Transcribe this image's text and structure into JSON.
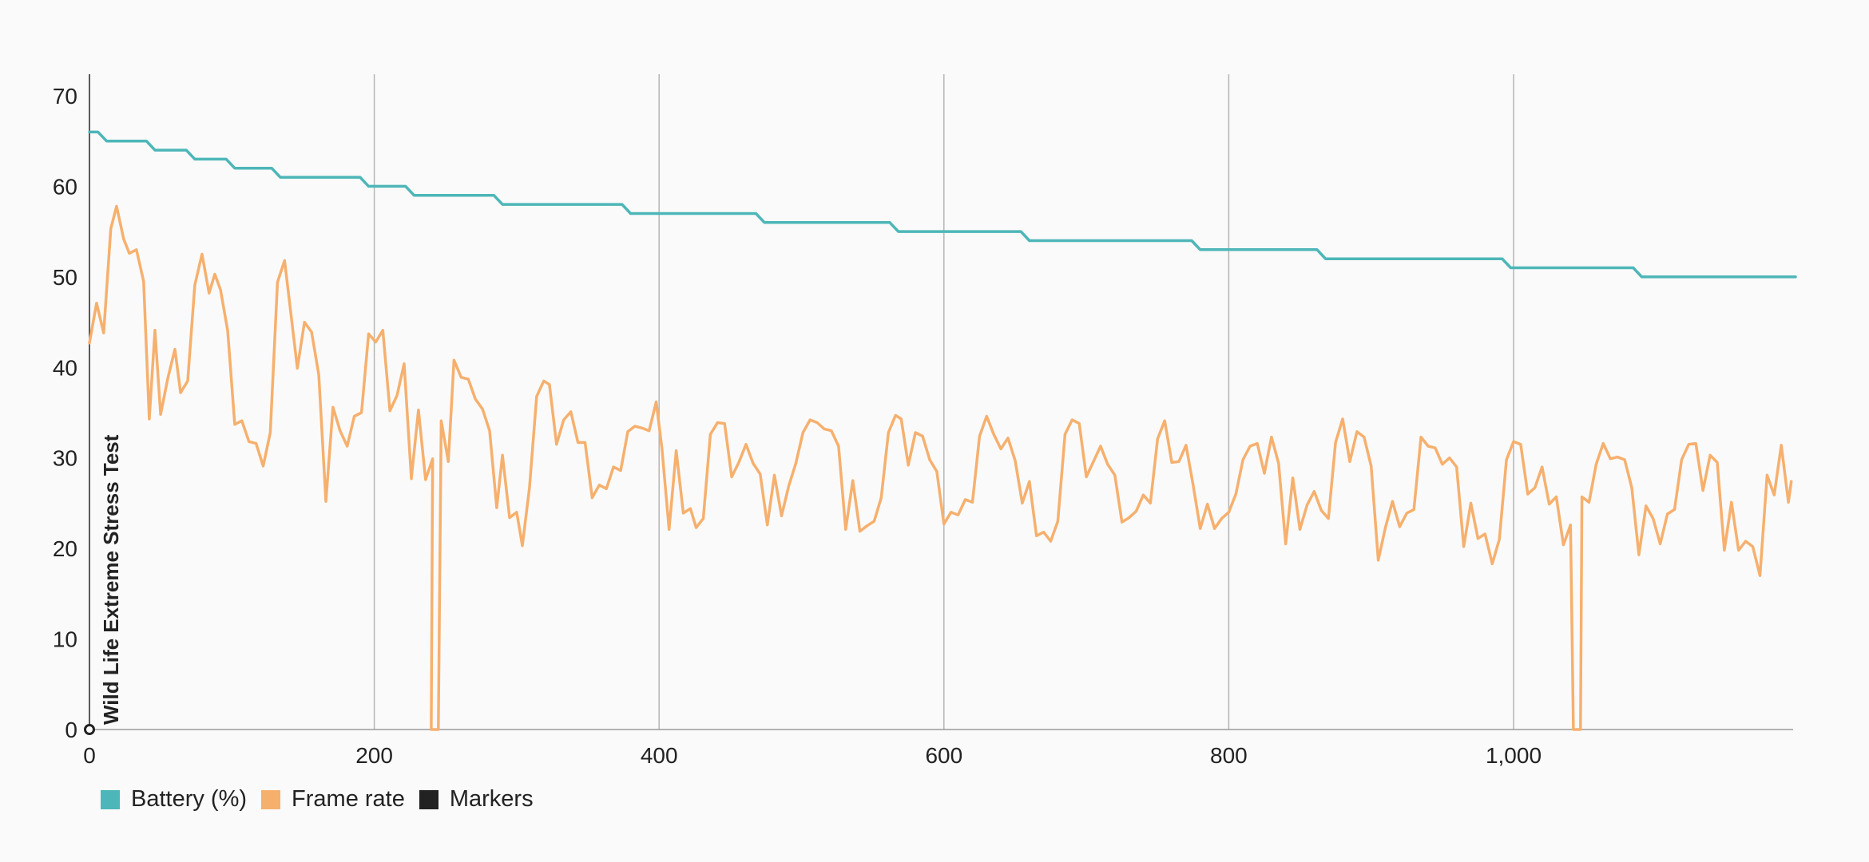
{
  "chart_data": {
    "type": "line",
    "x_ticks": [
      "0",
      "200",
      "400",
      "600",
      "800",
      "1,000"
    ],
    "y_ticks": [
      "0",
      "10",
      "20",
      "30",
      "40",
      "50",
      "60",
      "70"
    ],
    "xlim": [
      0,
      1200
    ],
    "ylim": [
      0,
      70
    ],
    "grid": "vertical",
    "legend_position": "bottom-left",
    "series": [
      {
        "name": "Battery (%)",
        "color": "#4db6b8",
        "points": [
          [
            0,
            66
          ],
          [
            6,
            66
          ],
          [
            12,
            65
          ],
          [
            40,
            65
          ],
          [
            46,
            64
          ],
          [
            68,
            64
          ],
          [
            74,
            63
          ],
          [
            96,
            63
          ],
          [
            102,
            62
          ],
          [
            128,
            62
          ],
          [
            134,
            61
          ],
          [
            190,
            61
          ],
          [
            196,
            60
          ],
          [
            222,
            60
          ],
          [
            228,
            59
          ],
          [
            284,
            59
          ],
          [
            290,
            58
          ],
          [
            374,
            58
          ],
          [
            380,
            57
          ],
          [
            468,
            57
          ],
          [
            474,
            56
          ],
          [
            562,
            56
          ],
          [
            568,
            55
          ],
          [
            654,
            55
          ],
          [
            660,
            54
          ],
          [
            774,
            54
          ],
          [
            780,
            53
          ],
          [
            862,
            53
          ],
          [
            868,
            52
          ],
          [
            992,
            52
          ],
          [
            998,
            51
          ],
          [
            1084,
            51
          ],
          [
            1090,
            50
          ],
          [
            1198,
            50
          ]
        ]
      },
      {
        "name": "Frame rate",
        "color": "#f6b06e",
        "points": [
          [
            0,
            42.7
          ],
          [
            5,
            47.1
          ],
          [
            10,
            43.8
          ],
          [
            15,
            55.3
          ],
          [
            19,
            57.8
          ],
          [
            24,
            54.2
          ],
          [
            28,
            52.6
          ],
          [
            33,
            53
          ],
          [
            38,
            49.5
          ],
          [
            42,
            34.3
          ],
          [
            46,
            44.1
          ],
          [
            50,
            34.8
          ],
          [
            55,
            38.8
          ],
          [
            60,
            42
          ],
          [
            64,
            37.2
          ],
          [
            69,
            38.5
          ],
          [
            74,
            49.1
          ],
          [
            79,
            52.5
          ],
          [
            84,
            48.2
          ],
          [
            88,
            50.3
          ],
          [
            92,
            48.6
          ],
          [
            97,
            44.1
          ],
          [
            102,
            33.7
          ],
          [
            107,
            34.1
          ],
          [
            112,
            31.8
          ],
          [
            117,
            31.6
          ],
          [
            122,
            29.1
          ],
          [
            127,
            32.8
          ],
          [
            132,
            49.4
          ],
          [
            137,
            51.8
          ],
          [
            142,
            45.2
          ],
          [
            146,
            39.9
          ],
          [
            151,
            45
          ],
          [
            156,
            43.9
          ],
          [
            161,
            39.2
          ],
          [
            166,
            25.2
          ],
          [
            171,
            35.6
          ],
          [
            176,
            33
          ],
          [
            181,
            31.3
          ],
          [
            186,
            34.6
          ],
          [
            191,
            35
          ],
          [
            196,
            43.7
          ],
          [
            201,
            42.8
          ],
          [
            206,
            44.1
          ],
          [
            211,
            35.2
          ],
          [
            216,
            36.9
          ],
          [
            221,
            40.4
          ],
          [
            226,
            27.7
          ],
          [
            231,
            35.3
          ],
          [
            236,
            27.6
          ],
          [
            241,
            29.9
          ],
          [
            240,
            0
          ],
          [
            245,
            0
          ],
          [
            247,
            34.1
          ],
          [
            252,
            29.6
          ],
          [
            256,
            40.8
          ],
          [
            261,
            38.9
          ],
          [
            266,
            38.7
          ],
          [
            271,
            36.5
          ],
          [
            276,
            35.4
          ],
          [
            281,
            33
          ],
          [
            286,
            24.5
          ],
          [
            290,
            30.3
          ],
          [
            295,
            23.4
          ],
          [
            300,
            24
          ],
          [
            304,
            20.3
          ],
          [
            309,
            26.7
          ],
          [
            314,
            36.8
          ],
          [
            319,
            38.5
          ],
          [
            323,
            38.1
          ],
          [
            328,
            31.5
          ],
          [
            333,
            34.2
          ],
          [
            338,
            35.1
          ],
          [
            343,
            31.7
          ],
          [
            348,
            31.7
          ],
          [
            353,
            25.6
          ],
          [
            358,
            27
          ],
          [
            363,
            26.6
          ],
          [
            368,
            29
          ],
          [
            373,
            28.6
          ],
          [
            378,
            32.9
          ],
          [
            383,
            33.5
          ],
          [
            388,
            33.3
          ],
          [
            393,
            33
          ],
          [
            398,
            36.2
          ],
          [
            402,
            31
          ],
          [
            407,
            22.1
          ],
          [
            412,
            30.8
          ],
          [
            417,
            23.9
          ],
          [
            422,
            24.4
          ],
          [
            426,
            22.3
          ],
          [
            431,
            23.3
          ],
          [
            436,
            32.6
          ],
          [
            441,
            33.9
          ],
          [
            446,
            33.8
          ],
          [
            451,
            27.9
          ],
          [
            456,
            29.5
          ],
          [
            461,
            31.5
          ],
          [
            466,
            29.4
          ],
          [
            471,
            28.2
          ],
          [
            476,
            22.6
          ],
          [
            481,
            28.1
          ],
          [
            486,
            23.6
          ],
          [
            491,
            26.9
          ],
          [
            496,
            29.4
          ],
          [
            501,
            32.8
          ],
          [
            506,
            34.2
          ],
          [
            511,
            33.9
          ],
          [
            516,
            33.2
          ],
          [
            521,
            33
          ],
          [
            526,
            31.3
          ],
          [
            531,
            22.1
          ],
          [
            536,
            27.5
          ],
          [
            541,
            21.9
          ],
          [
            546,
            22.5
          ],
          [
            551,
            23
          ],
          [
            556,
            25.6
          ],
          [
            561,
            32.8
          ],
          [
            566,
            34.7
          ],
          [
            570,
            34.3
          ],
          [
            575,
            29.2
          ],
          [
            580,
            32.8
          ],
          [
            585,
            32.4
          ],
          [
            590,
            29.8
          ],
          [
            595,
            28.5
          ],
          [
            600,
            22.7
          ],
          [
            605,
            24
          ],
          [
            610,
            23.7
          ],
          [
            615,
            25.4
          ],
          [
            620,
            25.1
          ],
          [
            625,
            32.4
          ],
          [
            630,
            34.6
          ],
          [
            635,
            32.6
          ],
          [
            640,
            31
          ],
          [
            645,
            32.2
          ],
          [
            650,
            29.7
          ],
          [
            655,
            25
          ],
          [
            660,
            27.4
          ],
          [
            665,
            21.4
          ],
          [
            670,
            21.8
          ],
          [
            675,
            20.8
          ],
          [
            680,
            23
          ],
          [
            685,
            32.6
          ],
          [
            690,
            34.2
          ],
          [
            695,
            33.8
          ],
          [
            700,
            27.9
          ],
          [
            705,
            29.6
          ],
          [
            710,
            31.3
          ],
          [
            715,
            29.3
          ],
          [
            720,
            28.1
          ],
          [
            725,
            22.9
          ],
          [
            730,
            23.4
          ],
          [
            735,
            24.1
          ],
          [
            740,
            25.9
          ],
          [
            745,
            25
          ],
          [
            750,
            32.1
          ],
          [
            755,
            34.1
          ],
          [
            760,
            29.5
          ],
          [
            765,
            29.6
          ],
          [
            770,
            31.4
          ],
          [
            775,
            27
          ],
          [
            780,
            22.2
          ],
          [
            785,
            24.9
          ],
          [
            790,
            22.2
          ],
          [
            795,
            23.3
          ],
          [
            800,
            24
          ],
          [
            805,
            26
          ],
          [
            810,
            29.8
          ],
          [
            815,
            31.3
          ],
          [
            820,
            31.6
          ],
          [
            825,
            28.3
          ],
          [
            830,
            32.3
          ],
          [
            835,
            29.4
          ],
          [
            840,
            20.5
          ],
          [
            845,
            27.8
          ],
          [
            850,
            22.1
          ],
          [
            855,
            24.8
          ],
          [
            860,
            26.3
          ],
          [
            865,
            24.2
          ],
          [
            870,
            23.3
          ],
          [
            875,
            31.7
          ],
          [
            880,
            34.3
          ],
          [
            885,
            29.6
          ],
          [
            890,
            32.9
          ],
          [
            895,
            32.3
          ],
          [
            900,
            29.1
          ],
          [
            905,
            18.7
          ],
          [
            910,
            22.3
          ],
          [
            915,
            25.2
          ],
          [
            920,
            22.4
          ],
          [
            925,
            23.9
          ],
          [
            930,
            24.3
          ],
          [
            935,
            32.3
          ],
          [
            940,
            31.3
          ],
          [
            945,
            31.1
          ],
          [
            950,
            29.3
          ],
          [
            955,
            30
          ],
          [
            960,
            29
          ],
          [
            965,
            20.2
          ],
          [
            970,
            25
          ],
          [
            975,
            21.1
          ],
          [
            980,
            21.6
          ],
          [
            985,
            18.3
          ],
          [
            990,
            21
          ],
          [
            995,
            29.8
          ],
          [
            1000,
            31.8
          ],
          [
            1005,
            31.5
          ],
          [
            1010,
            26
          ],
          [
            1015,
            26.7
          ],
          [
            1020,
            29
          ],
          [
            1025,
            24.9
          ],
          [
            1030,
            25.7
          ],
          [
            1035,
            20.4
          ],
          [
            1040,
            22.6
          ],
          [
            1042,
            0
          ],
          [
            1047,
            0
          ],
          [
            1048,
            25.7
          ],
          [
            1053,
            25.1
          ],
          [
            1058,
            29.3
          ],
          [
            1063,
            31.6
          ],
          [
            1068,
            29.9
          ],
          [
            1073,
            30.1
          ],
          [
            1078,
            29.8
          ],
          [
            1083,
            26.7
          ],
          [
            1088,
            19.3
          ],
          [
            1093,
            24.7
          ],
          [
            1098,
            23.3
          ],
          [
            1103,
            20.5
          ],
          [
            1108,
            23.8
          ],
          [
            1113,
            24.3
          ],
          [
            1118,
            29.8
          ],
          [
            1123,
            31.5
          ],
          [
            1128,
            31.6
          ],
          [
            1133,
            26.4
          ],
          [
            1138,
            30.3
          ],
          [
            1143,
            29.5
          ],
          [
            1148,
            19.8
          ],
          [
            1153,
            25.1
          ],
          [
            1158,
            19.8
          ],
          [
            1163,
            20.8
          ],
          [
            1168,
            20.2
          ],
          [
            1173,
            17
          ],
          [
            1178,
            28.1
          ],
          [
            1183,
            25.9
          ],
          [
            1188,
            31.4
          ],
          [
            1193,
            25.1
          ],
          [
            1195,
            27.4
          ]
        ]
      },
      {
        "name": "Markers",
        "color": "#222222",
        "points": [
          [
            0,
            0
          ]
        ],
        "labels": [
          "Wild Life Extreme Stress Test"
        ]
      }
    ]
  }
}
